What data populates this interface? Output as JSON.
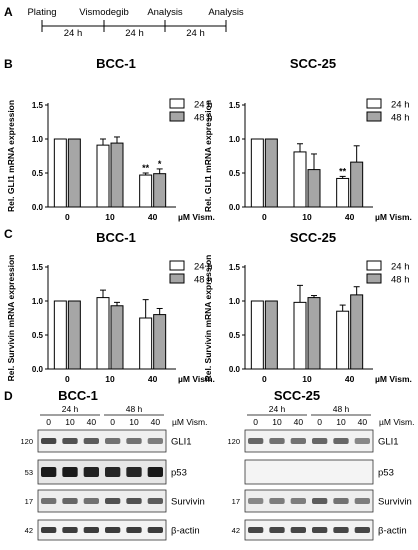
{
  "panels": {
    "a": "A",
    "b": "B",
    "c": "C",
    "d": "D"
  },
  "timeline": {
    "steps": [
      "Plating",
      "Vismodegib",
      "Analysis",
      "Analysis"
    ],
    "intervals": [
      "24 h",
      "24 h",
      "24 h"
    ]
  },
  "chart_data": [
    {
      "type": "bar",
      "title": "BCC-1",
      "ylabel": "Rel. GLI1 mRNA expression",
      "xlabel": "",
      "categories": [
        "0",
        "10",
        "40"
      ],
      "unit_label": "µM Vism.",
      "ylim": [
        0,
        1.5
      ],
      "yticks": [
        "0.0",
        "0.5",
        "1.0",
        "1.5"
      ],
      "legend": [
        "24 h",
        "48 h"
      ],
      "legend_placement": "top-right",
      "series": [
        {
          "name": "24 h",
          "values": [
            1.0,
            0.91,
            0.47
          ],
          "errors": [
            0,
            0.09,
            0.03
          ]
        },
        {
          "name": "48 h",
          "values": [
            1.0,
            0.94,
            0.49
          ],
          "errors": [
            0,
            0.09,
            0.07
          ]
        }
      ],
      "annotations": [
        {
          "category": "40",
          "series": "24 h",
          "text": "**"
        },
        {
          "category": "40",
          "series": "48 h",
          "text": "*"
        }
      ]
    },
    {
      "type": "bar",
      "title": "SCC-25",
      "ylabel": "Rel. GLI1 mRNA expression",
      "xlabel": "",
      "categories": [
        "0",
        "10",
        "40"
      ],
      "unit_label": "µM Vism.",
      "ylim": [
        0,
        1.5
      ],
      "yticks": [
        "0.0",
        "0.5",
        "1.0",
        "1.5"
      ],
      "legend": [
        "24 h",
        "48 h"
      ],
      "legend_placement": "top-right",
      "series": [
        {
          "name": "24 h",
          "values": [
            1.0,
            0.81,
            0.42
          ],
          "errors": [
            0,
            0.12,
            0.03
          ]
        },
        {
          "name": "48 h",
          "values": [
            1.0,
            0.55,
            0.66
          ],
          "errors": [
            0,
            0.23,
            0.24
          ]
        }
      ],
      "annotations": [
        {
          "category": "40",
          "series": "24 h",
          "text": "**"
        }
      ]
    },
    {
      "type": "bar",
      "title": "BCC-1",
      "ylabel": "Rel. Survivin mRNA expression",
      "xlabel": "",
      "categories": [
        "0",
        "10",
        "40"
      ],
      "unit_label": "µM Vism.",
      "ylim": [
        0,
        1.5
      ],
      "yticks": [
        "0.0",
        "0.5",
        "1.0",
        "1.5"
      ],
      "legend": [
        "24 h",
        "48 h"
      ],
      "legend_placement": "top-right",
      "series": [
        {
          "name": "24 h",
          "values": [
            1.0,
            1.05,
            0.75
          ],
          "errors": [
            0,
            0.11,
            0.27
          ]
        },
        {
          "name": "48 h",
          "values": [
            1.0,
            0.93,
            0.8
          ],
          "errors": [
            0,
            0.05,
            0.09
          ]
        }
      ],
      "annotations": []
    },
    {
      "type": "bar",
      "title": "SCC-25",
      "ylabel": "Rel. Survivin mRNA expression",
      "xlabel": "",
      "categories": [
        "0",
        "10",
        "40"
      ],
      "unit_label": "µM Vism.",
      "ylim": [
        0,
        1.5
      ],
      "yticks": [
        "0.0",
        "0.5",
        "1.0",
        "1.5"
      ],
      "legend": [
        "24 h",
        "48 h"
      ],
      "legend_placement": "top-right",
      "series": [
        {
          "name": "24 h",
          "values": [
            1.0,
            0.98,
            0.85
          ],
          "errors": [
            0,
            0.25,
            0.09
          ]
        },
        {
          "name": "48 h",
          "values": [
            1.0,
            1.05,
            1.09
          ],
          "errors": [
            0,
            0.03,
            0.12
          ]
        }
      ],
      "annotations": []
    }
  ],
  "blots": [
    {
      "title": "BCC-1",
      "groups": [
        "24 h",
        "48 h"
      ],
      "doses": [
        "0",
        "10",
        "40",
        "0",
        "10",
        "40"
      ],
      "unit_label": "µM Vism.",
      "rows": [
        {
          "kda": "120",
          "protein": "GLI1",
          "bg": "#f0f0f0",
          "intensity": [
            0.75,
            0.7,
            0.65,
            0.55,
            0.55,
            0.5
          ]
        },
        {
          "kda": "53",
          "protein": "p53",
          "bg": "#e6e6e6",
          "intensity": [
            0.95,
            0.95,
            0.92,
            0.9,
            0.9,
            0.95
          ]
        },
        {
          "kda": "17",
          "protein": "Survivin",
          "bg": "#eeeeee",
          "intensity": [
            0.55,
            0.6,
            0.55,
            0.7,
            0.7,
            0.65
          ]
        },
        {
          "kda": "42",
          "protein": "β-actin",
          "bg": "#f2f2f2",
          "intensity": [
            0.8,
            0.8,
            0.8,
            0.8,
            0.8,
            0.8
          ]
        }
      ]
    },
    {
      "title": "SCC-25",
      "groups": [
        "24 h",
        "48 h"
      ],
      "doses": [
        "0",
        "10",
        "40",
        "0",
        "10",
        "40"
      ],
      "unit_label": "µM Vism.",
      "rows": [
        {
          "kda": "120",
          "protein": "GLI1",
          "bg": "#f2f2f2",
          "intensity": [
            0.6,
            0.55,
            0.55,
            0.6,
            0.6,
            0.45
          ]
        },
        {
          "kda": "",
          "protein": "p53",
          "bg": "#f4f4f4",
          "intensity": [
            0,
            0,
            0,
            0,
            0,
            0
          ]
        },
        {
          "kda": "17",
          "protein": "Survivin",
          "bg": "#eeeeee",
          "intensity": [
            0.45,
            0.5,
            0.5,
            0.65,
            0.55,
            0.5
          ]
        },
        {
          "kda": "42",
          "protein": "β-actin",
          "bg": "#f2f2f2",
          "intensity": [
            0.75,
            0.75,
            0.75,
            0.75,
            0.75,
            0.75
          ]
        }
      ]
    }
  ],
  "colors": {
    "bar_24h": "#ffffff",
    "bar_48h": "#a6a6a6",
    "axis": "#000000"
  }
}
